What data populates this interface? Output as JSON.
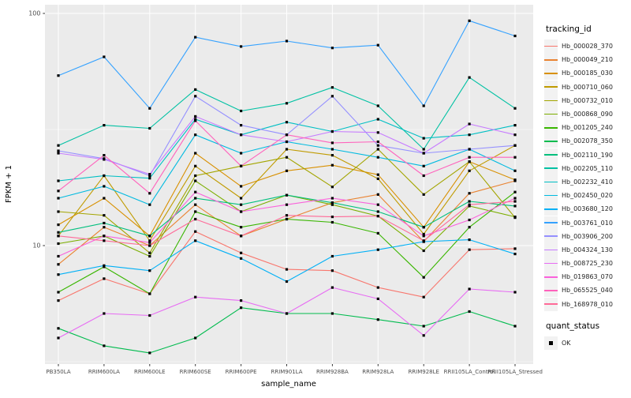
{
  "panel": {
    "bg": "#EBEBEB",
    "gridline_color": "#FFFFFF",
    "tick_color": "#333333",
    "tick_label_color": "#4D4D4D",
    "point_color": "#000000"
  },
  "chart_data": {
    "type": "line",
    "title": "",
    "xlabel": "sample_name",
    "ylabel": "FPKM + 1",
    "y_scale": "log10",
    "ylim": [
      3.0,
      110
    ],
    "y_major_ticks": [
      10,
      100
    ],
    "y_minor_gridlines": [
      3.162,
      31.623
    ],
    "grid": "on",
    "legend_position": "right",
    "point_shape": "filled-square",
    "categories": [
      "PB350LA",
      "RRIM600LA",
      "RRIM600LE",
      "RRIM600SE",
      "RRIM600PE",
      "RRIM901LA",
      "RRIM928BA",
      "RRIM928LA",
      "RRIM928LE",
      "RRII105LA_Control",
      "RRII105LA_Stressed"
    ],
    "legend_color": {
      "title": "tracking_id"
    },
    "legend_shape": {
      "title": "quant_status",
      "items": [
        "OK"
      ]
    },
    "series": [
      {
        "name": "Hb_000028_370",
        "color": "#F8766D",
        "values": [
          5.8,
          7.2,
          6.2,
          11.5,
          9.3,
          7.9,
          7.8,
          6.6,
          6.0,
          9.6,
          9.7
        ]
      },
      {
        "name": "Hb_000049_210",
        "color": "#EA8331",
        "values": [
          8.3,
          12,
          10,
          15,
          11,
          13,
          15.3,
          16.6,
          10.4,
          16.8,
          19
        ]
      },
      {
        "name": "Hb_000185_030",
        "color": "#D89000",
        "values": [
          12.3,
          16,
          11,
          25,
          18,
          21,
          22.2,
          20.2,
          12,
          23,
          19.2
        ]
      },
      {
        "name": "Hb_000710_060",
        "color": "#C09B00",
        "values": [
          11,
          20,
          10.5,
          22,
          16,
          26,
          24.5,
          19.4,
          11.2,
          21,
          27
        ]
      },
      {
        "name": "Hb_000732_010",
        "color": "#A3A500",
        "values": [
          14,
          13.5,
          9.3,
          20,
          22,
          24,
          17.9,
          26,
          16.6,
          23,
          13.2
        ]
      },
      {
        "name": "Hb_000868_090",
        "color": "#7CAE00",
        "values": [
          10.2,
          11,
          9.0,
          19,
          14,
          16.5,
          15.0,
          13.4,
          9.5,
          14.8,
          13.3
        ]
      },
      {
        "name": "Hb_001205_240",
        "color": "#39B600",
        "values": [
          6.3,
          8.1,
          6.2,
          14,
          12,
          13,
          12.6,
          11.3,
          7.3,
          12,
          17
        ]
      },
      {
        "name": "Hb_002078_350",
        "color": "#00BB4E",
        "values": [
          4.4,
          3.7,
          3.45,
          4.0,
          5.4,
          5.1,
          5.1,
          4.8,
          4.5,
          5.2,
          4.5
        ]
      },
      {
        "name": "Hb_002110_190",
        "color": "#00BF7D",
        "values": [
          11.4,
          12.5,
          11,
          16,
          15,
          16.5,
          15.3,
          14,
          12,
          15.5,
          14.8
        ]
      },
      {
        "name": "Hb_002205_110",
        "color": "#00C1A3",
        "values": [
          27,
          33,
          32,
          47,
          38,
          41,
          48,
          40,
          26,
          53,
          39
        ]
      },
      {
        "name": "Hb_002232_410",
        "color": "#00BFC4",
        "values": [
          19,
          20,
          19.5,
          35,
          30,
          34,
          31,
          35,
          29,
          30,
          33
        ]
      },
      {
        "name": "Hb_002450_020",
        "color": "#00BAE0",
        "values": [
          16,
          18,
          15,
          30,
          25,
          28,
          26,
          24,
          22,
          26,
          21
        ]
      },
      {
        "name": "Hb_003680_120",
        "color": "#00B0F6",
        "values": [
          7.5,
          8.2,
          7.8,
          10.5,
          8.8,
          7.0,
          9.0,
          9.6,
          10.4,
          10.6,
          9.2
        ]
      },
      {
        "name": "Hb_003761_010",
        "color": "#35A2FF",
        "values": [
          54,
          65,
          39,
          79,
          72,
          76,
          71,
          73,
          40,
          93,
          80
        ]
      },
      {
        "name": "Hb_003906_200",
        "color": "#9590FF",
        "values": [
          25.6,
          23.7,
          20,
          44,
          33,
          30,
          44,
          27,
          25,
          26,
          27
        ]
      },
      {
        "name": "Hb_004324_130",
        "color": "#C77CFF",
        "values": [
          25,
          23.5,
          20.3,
          36,
          30,
          28,
          31,
          30.7,
          25,
          33.4,
          30
        ]
      },
      {
        "name": "Hb_008725_230",
        "color": "#E76BF3",
        "values": [
          4.0,
          5.1,
          5.0,
          6.0,
          5.8,
          5.1,
          6.6,
          5.9,
          4.1,
          6.5,
          6.3
        ]
      },
      {
        "name": "Hb_019863_070",
        "color": "#FA62DB",
        "values": [
          9.0,
          11,
          10.3,
          17,
          14,
          15,
          16,
          15,
          11,
          12.9,
          16
        ]
      },
      {
        "name": "Hb_065525_040",
        "color": "#FF62BC",
        "values": [
          17.2,
          24.5,
          16.8,
          34.5,
          22,
          30,
          27.7,
          28,
          20,
          24,
          24
        ]
      },
      {
        "name": "Hb_168978_010",
        "color": "#FF6A98",
        "values": [
          11,
          10.5,
          10,
          13,
          11,
          13.5,
          13.3,
          13.4,
          10.5,
          15,
          15.5
        ]
      }
    ]
  }
}
